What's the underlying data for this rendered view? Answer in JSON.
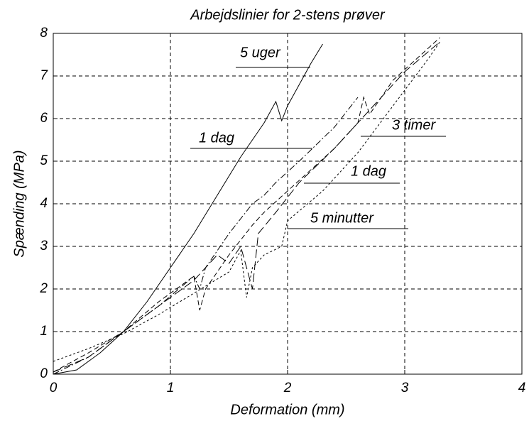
{
  "chart_data": {
    "type": "line",
    "title": "Arbejdslinier for 2-stens prøver",
    "x_label": "Deformation (mm)",
    "y_label": "Spænding (MPa)",
    "xlim": [
      0,
      4
    ],
    "xticks": [
      0,
      1,
      2,
      3,
      4
    ],
    "ylim": [
      0,
      8
    ],
    "yticks": [
      0,
      1,
      2,
      3,
      4,
      5,
      6,
      7,
      8
    ],
    "grid": true,
    "series": [
      {
        "name": "5 uger",
        "color": "#000000",
        "line_style": "solid",
        "x": [
          0,
          0.2,
          0.4,
          0.6,
          0.8,
          1.0,
          1.2,
          1.4,
          1.6,
          1.8,
          1.9,
          1.95,
          2.0,
          2.1,
          2.2,
          2.3
        ],
        "values": [
          0,
          0.1,
          0.5,
          1.0,
          1.7,
          2.5,
          3.3,
          4.2,
          5.1,
          5.9,
          6.4,
          5.95,
          6.3,
          6.8,
          7.3,
          7.75
        ]
      },
      {
        "name": "1 dag",
        "color": "#000000",
        "line_style": "dashdot",
        "x": [
          0,
          0.3,
          0.6,
          0.9,
          1.2,
          1.25,
          1.3,
          1.5,
          1.7,
          1.8,
          1.9,
          2.1,
          2.4,
          2.6
        ],
        "values": [
          0,
          0.4,
          1.0,
          1.6,
          2.3,
          2.0,
          2.5,
          3.3,
          4.0,
          4.2,
          4.5,
          5.0,
          5.8,
          6.5
        ]
      },
      {
        "name": "3 timer",
        "color": "#000000",
        "line_style": "dashed",
        "x": [
          0,
          0.3,
          0.6,
          0.9,
          1.2,
          1.25,
          1.3,
          1.5,
          1.7,
          1.8,
          2.0,
          2.2,
          2.4,
          2.6,
          2.65,
          2.7,
          2.9,
          3.1,
          3.3
        ],
        "values": [
          0.05,
          0.5,
          1.0,
          1.7,
          2.3,
          1.5,
          2.0,
          2.8,
          3.5,
          3.8,
          4.3,
          4.8,
          5.3,
          5.9,
          6.5,
          6.1,
          6.9,
          7.4,
          7.9
        ]
      },
      {
        "name": "1 dag",
        "color": "#000000",
        "line_style": "longdash",
        "x": [
          0,
          0.3,
          0.6,
          0.9,
          1.2,
          1.4,
          1.5,
          1.6,
          1.7,
          1.75,
          1.9,
          2.1,
          2.4,
          2.7,
          3.0,
          3.3
        ],
        "values": [
          0.05,
          0.4,
          1.0,
          1.6,
          2.2,
          2.8,
          2.6,
          3.0,
          2.0,
          3.3,
          3.8,
          4.5,
          5.3,
          6.2,
          7.1,
          7.8
        ]
      },
      {
        "name": "5 minutter",
        "color": "#000000",
        "line_style": "dotted",
        "x": [
          0,
          0.3,
          0.6,
          0.9,
          1.2,
          1.5,
          1.6,
          1.65,
          1.7,
          1.8,
          1.95,
          2.0,
          2.3,
          2.6,
          2.9,
          3.2,
          3.3
        ],
        "values": [
          0.3,
          0.6,
          0.95,
          1.4,
          1.9,
          2.4,
          2.9,
          1.8,
          2.5,
          2.8,
          3.0,
          3.6,
          4.3,
          5.2,
          6.3,
          7.4,
          7.8
        ]
      }
    ]
  }
}
